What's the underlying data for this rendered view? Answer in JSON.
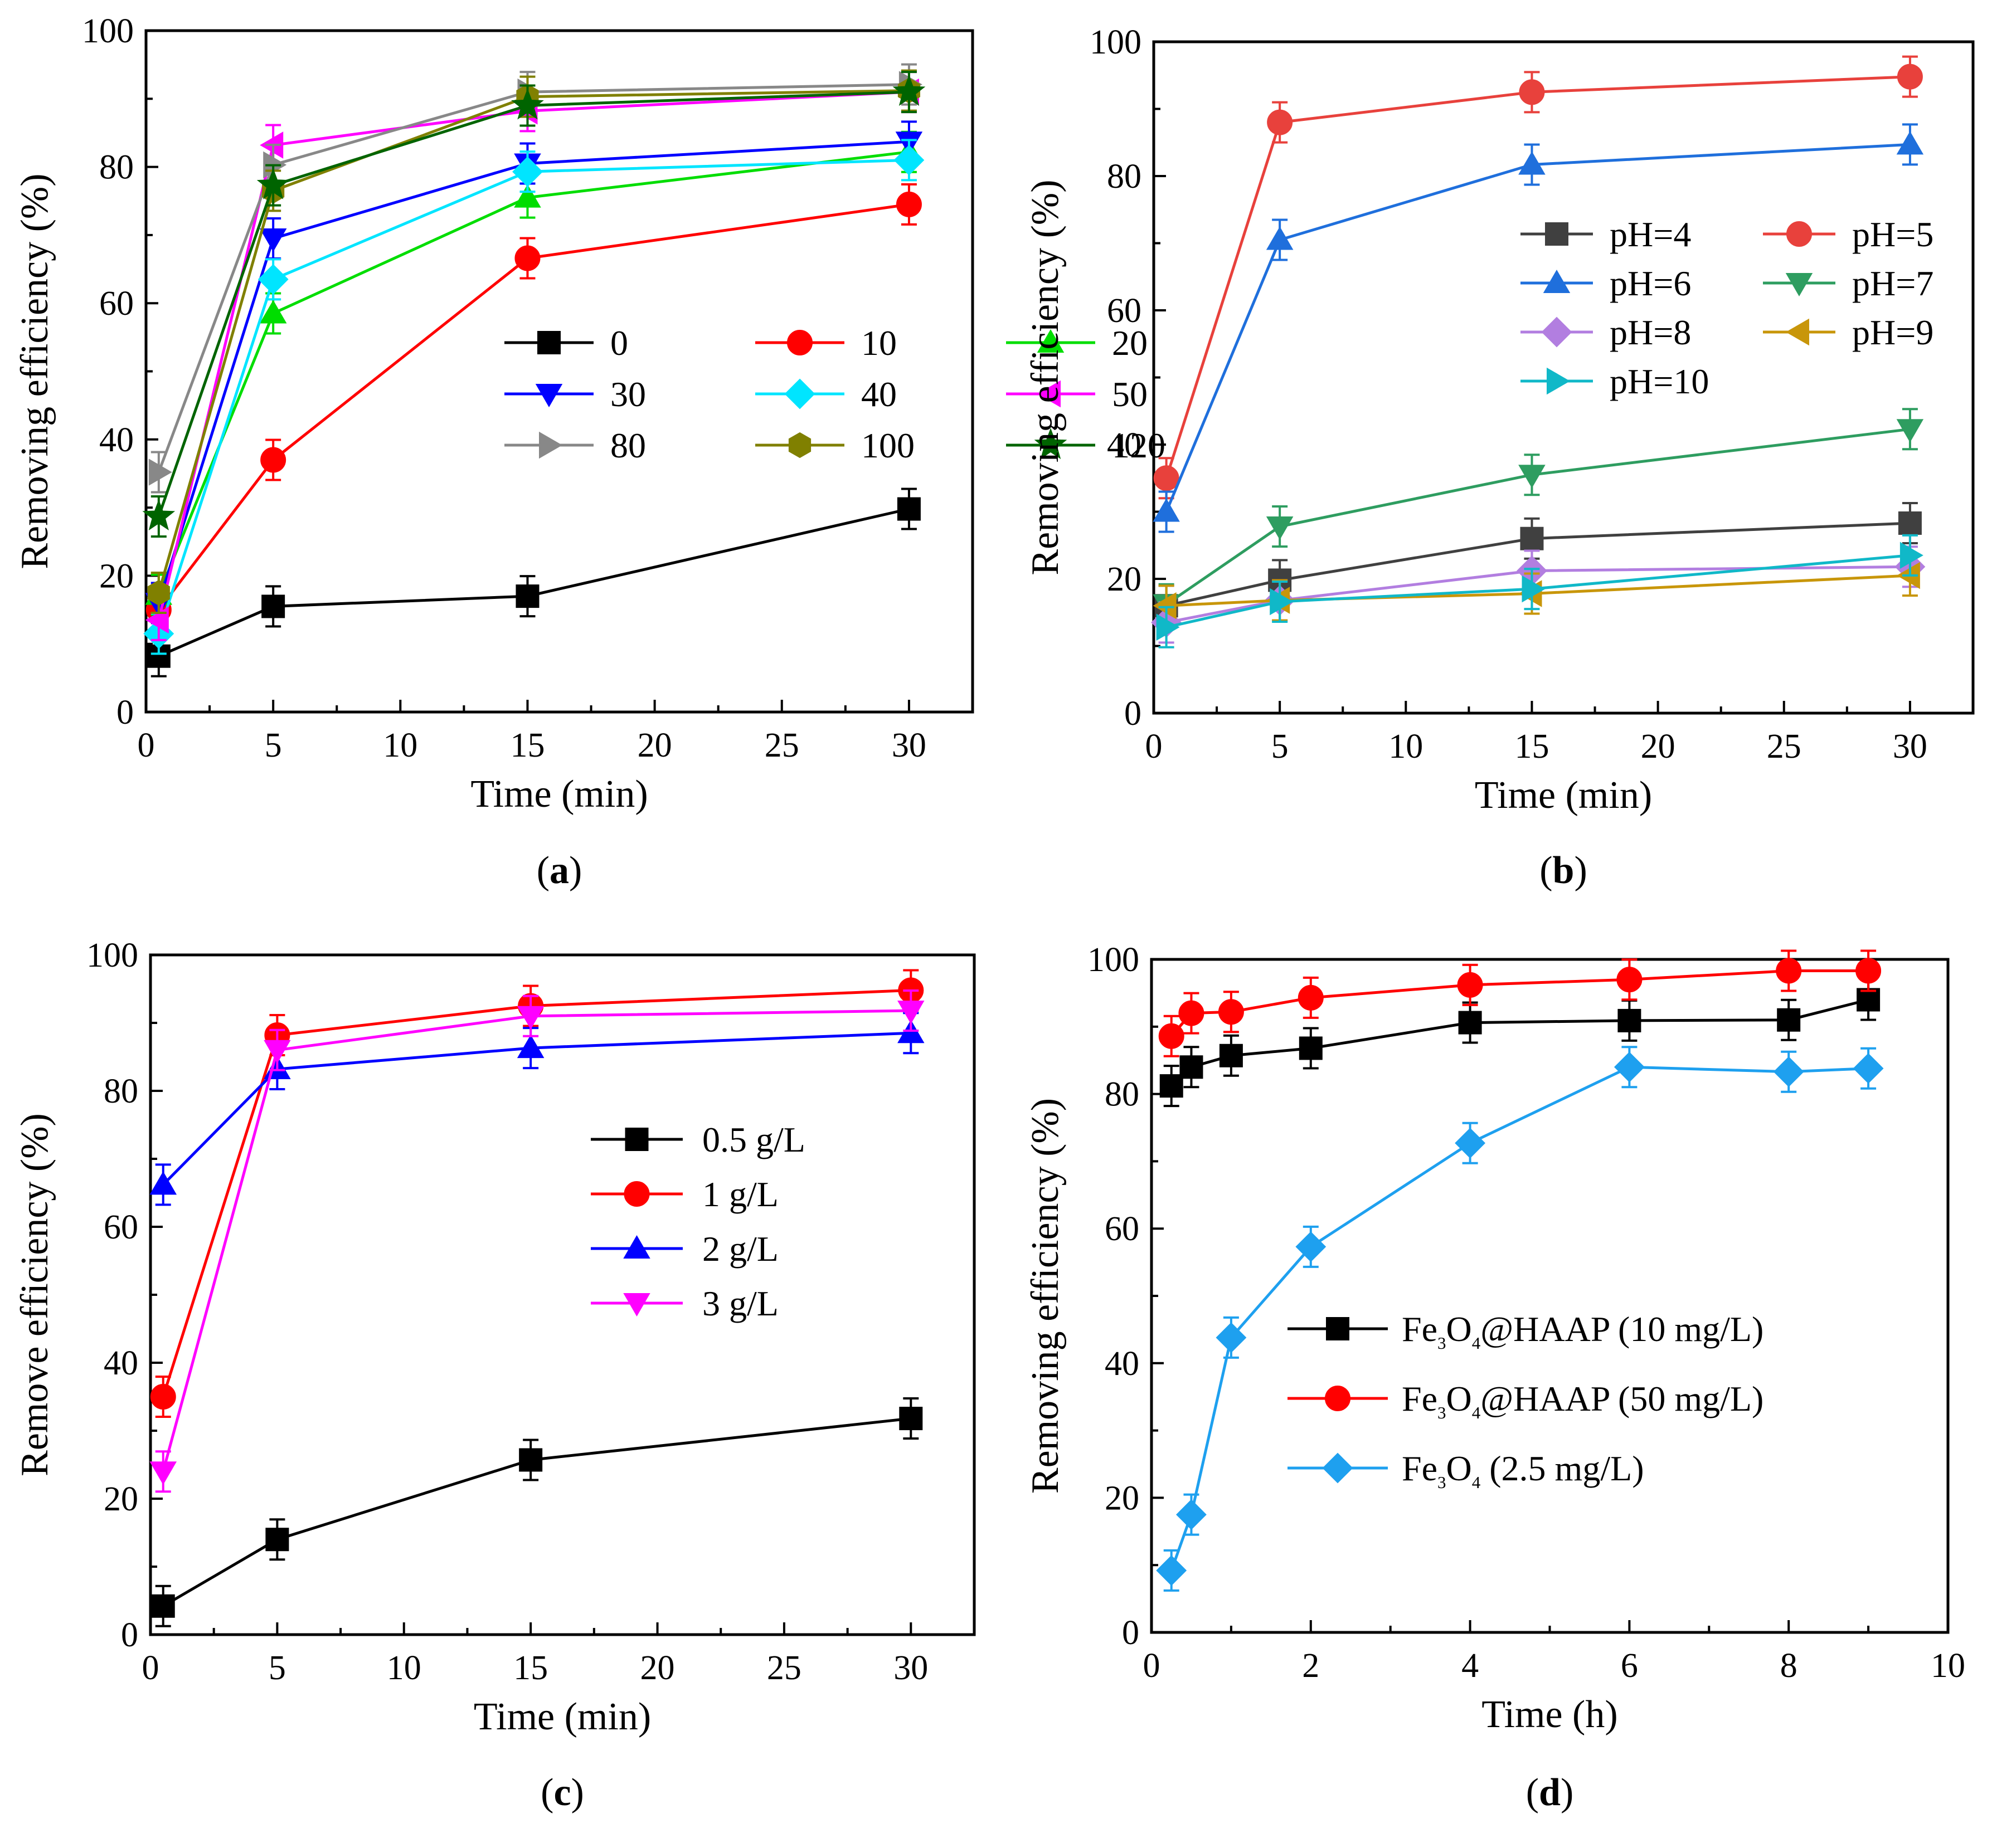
{
  "chart_data": [
    {
      "type": "line",
      "panel": "a",
      "caption_letter": "a",
      "xlabel": "Time (min)",
      "ylabel": "Removing efficiency (%)",
      "xlim": [
        0,
        32.5
      ],
      "ylim": [
        0,
        100
      ],
      "xticks": [
        0,
        5,
        10,
        15,
        20,
        25,
        30
      ],
      "yticks": [
        0,
        20,
        40,
        60,
        80,
        100
      ],
      "x": [
        0.5,
        5,
        15,
        30
      ],
      "series": [
        {
          "name": "0",
          "color": "#000000",
          "marker": "square",
          "values": [
            8.2,
            15.5,
            17.0,
            29.8
          ]
        },
        {
          "name": "10",
          "color": "#ff0000",
          "marker": "circle",
          "values": [
            15.0,
            37.0,
            66.6,
            74.5
          ]
        },
        {
          "name": "20",
          "color": "#00dd00",
          "marker": "triangle-up",
          "values": [
            17.2,
            58.5,
            75.5,
            82.2
          ]
        },
        {
          "name": "30",
          "color": "#0000ff",
          "marker": "triangle-down",
          "values": [
            16.0,
            69.5,
            80.5,
            83.7
          ]
        },
        {
          "name": "40",
          "color": "#00e5ff",
          "marker": "diamond",
          "values": [
            11.5,
            63.5,
            79.3,
            81.0
          ]
        },
        {
          "name": "50",
          "color": "#ff00ff",
          "marker": "triangle-left",
          "values": [
            13.5,
            83.2,
            88.2,
            91.0
          ]
        },
        {
          "name": "80",
          "color": "#888888",
          "marker": "triangle-right",
          "values": [
            35.2,
            80.3,
            91.0,
            92.1
          ]
        },
        {
          "name": "100",
          "color": "#808000",
          "marker": "hexagon",
          "values": [
            17.5,
            76.5,
            90.3,
            91.2
          ]
        },
        {
          "name": "120",
          "color": "#006400",
          "marker": "star",
          "values": [
            28.7,
            77.3,
            89.0,
            91.0
          ]
        }
      ]
    },
    {
      "type": "line",
      "panel": "b",
      "caption_letter": "b",
      "xlabel": "Time (min)",
      "ylabel": "Removing efficiency (%)",
      "xlim": [
        0,
        32.5
      ],
      "ylim": [
        0,
        100
      ],
      "xticks": [
        0,
        5,
        10,
        15,
        20,
        25,
        30
      ],
      "yticks": [
        0,
        20,
        40,
        60,
        80,
        100
      ],
      "x": [
        0.5,
        5,
        15,
        30
      ],
      "series": [
        {
          "name": "pH=4",
          "color": "#404040",
          "marker": "square",
          "values": [
            16.0,
            19.8,
            26.0,
            28.3
          ]
        },
        {
          "name": "pH=5",
          "color": "#e8413c",
          "marker": "circle",
          "values": [
            35.0,
            88.0,
            92.5,
            94.8
          ]
        },
        {
          "name": "pH=6",
          "color": "#1f6fdc",
          "marker": "triangle-up",
          "values": [
            30.0,
            70.5,
            81.7,
            84.7
          ]
        },
        {
          "name": "pH=7",
          "color": "#2e9d60",
          "marker": "triangle-down",
          "values": [
            16.2,
            27.8,
            35.5,
            42.3
          ]
        },
        {
          "name": "pH=8",
          "color": "#b27ee0",
          "marker": "diamond",
          "values": [
            13.5,
            16.8,
            21.2,
            21.8
          ]
        },
        {
          "name": "pH=9",
          "color": "#c8960a",
          "marker": "triangle-left",
          "values": [
            16.0,
            16.8,
            17.8,
            20.5
          ]
        },
        {
          "name": "pH=10",
          "color": "#10b8c8",
          "marker": "triangle-right",
          "values": [
            12.8,
            16.6,
            18.5,
            23.5
          ]
        }
      ]
    },
    {
      "type": "line",
      "panel": "c",
      "caption_letter": "c",
      "xlabel": "Time (min)",
      "ylabel": "Remove efficiency (%)",
      "xlim": [
        0,
        32.5
      ],
      "ylim": [
        0,
        100
      ],
      "xticks": [
        0,
        5,
        10,
        15,
        20,
        25,
        30
      ],
      "yticks": [
        0,
        20,
        40,
        60,
        80,
        100
      ],
      "x": [
        0.5,
        5,
        15,
        30
      ],
      "series": [
        {
          "name": "0.5 g/L",
          "color": "#000000",
          "marker": "square",
          "values": [
            4.2,
            14.0,
            25.7,
            31.8
          ]
        },
        {
          "name": "1 g/L",
          "color": "#ff0000",
          "marker": "circle",
          "values": [
            35.0,
            88.2,
            92.5,
            94.8
          ]
        },
        {
          "name": "2 g/L",
          "color": "#0000ff",
          "marker": "triangle-up",
          "values": [
            66.2,
            83.2,
            86.3,
            88.5
          ]
        },
        {
          "name": "3 g/L",
          "color": "#ff00ff",
          "marker": "triangle-down",
          "values": [
            24.0,
            86.0,
            91.0,
            91.8
          ]
        }
      ]
    },
    {
      "type": "line",
      "panel": "d",
      "caption_letter": "d",
      "xlabel": "Time (h)",
      "ylabel": "Removing efficiency (%)",
      "xlim": [
        0,
        10
      ],
      "ylim": [
        0,
        100
      ],
      "xticks": [
        0,
        2,
        4,
        6,
        8,
        10
      ],
      "yticks": [
        0,
        20,
        40,
        60,
        80,
        100
      ],
      "x": [
        0.25,
        0.5,
        1,
        2,
        4,
        6,
        8,
        9
      ],
      "series": [
        {
          "name": "Fe3O4@HAAP (10 mg/L)",
          "label_parts": [
            "Fe",
            "3",
            "O",
            "4",
            "@HAAP (10 mg/L)"
          ],
          "color": "#000000",
          "marker": "square",
          "values": [
            81.2,
            84.0,
            85.7,
            86.8,
            90.6,
            90.9,
            91.0,
            94.0
          ]
        },
        {
          "name": "Fe3O4@HAAP (50 mg/L)",
          "label_parts": [
            "Fe",
            "3",
            "O",
            "4",
            "@HAAP (50 mg/L)"
          ],
          "color": "#ff0000",
          "marker": "circle",
          "values": [
            88.6,
            92.0,
            92.2,
            94.3,
            96.2,
            97.0,
            98.3,
            98.3
          ]
        },
        {
          "name": "Fe3O4 (2.5 mg/L)",
          "label_parts": [
            "Fe",
            "3",
            "O",
            "4",
            " (2.5 mg/L)"
          ],
          "color": "#1ea0ef",
          "marker": "diamond",
          "values": [
            9.2,
            17.5,
            43.8,
            57.3,
            72.7,
            84.0,
            83.3,
            83.8
          ]
        }
      ]
    }
  ]
}
